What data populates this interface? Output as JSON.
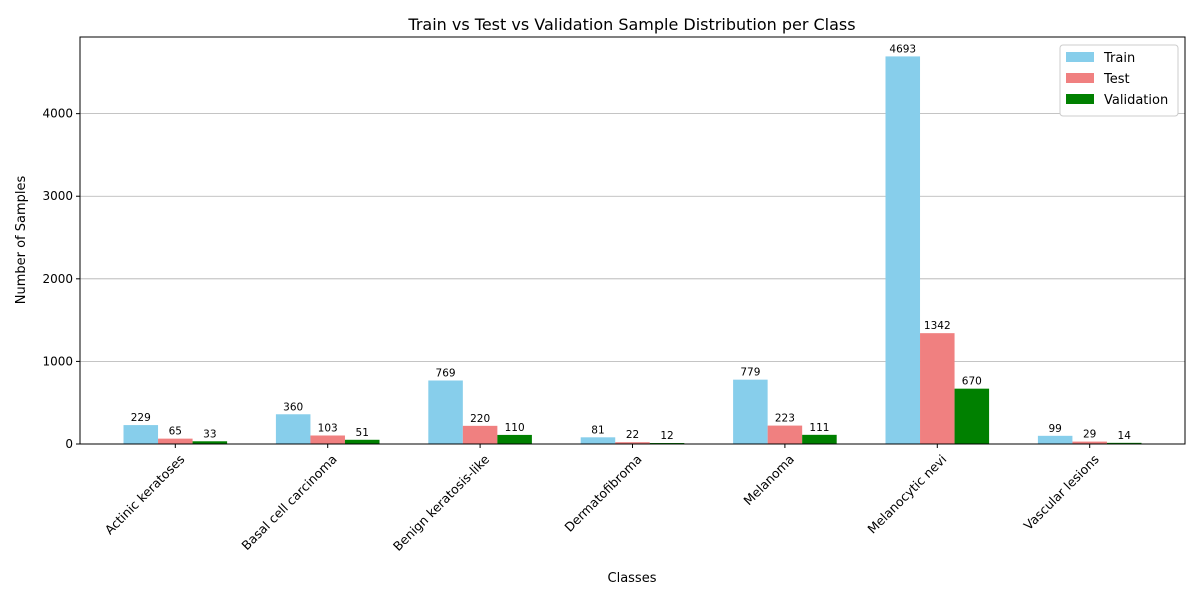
{
  "chart_data": {
    "type": "bar",
    "title": "Train vs Test vs Validation Sample Distribution per Class",
    "xlabel": "Classes",
    "ylabel": "Number of Samples",
    "categories": [
      "Actinic keratoses",
      "Basal cell carcinoma",
      "Benign keratosis-like",
      "Dermatofibroma",
      "Melanoma",
      "Melanocytic nevi",
      "Vascular lesions"
    ],
    "series": [
      {
        "name": "Train",
        "color": "#87ceeb",
        "values": [
          229,
          360,
          769,
          81,
          779,
          4693,
          99
        ]
      },
      {
        "name": "Test",
        "color": "#f08080",
        "values": [
          65,
          103,
          220,
          22,
          223,
          1342,
          29
        ]
      },
      {
        "name": "Validation",
        "color": "#008000",
        "values": [
          33,
          51,
          110,
          12,
          111,
          670,
          14
        ]
      }
    ],
    "ylim": [
      0,
      4928
    ],
    "yticks": [
      0,
      1000,
      2000,
      3000,
      4000
    ],
    "grid": "y-axis horizontal lines",
    "legend_position": "top-right"
  }
}
